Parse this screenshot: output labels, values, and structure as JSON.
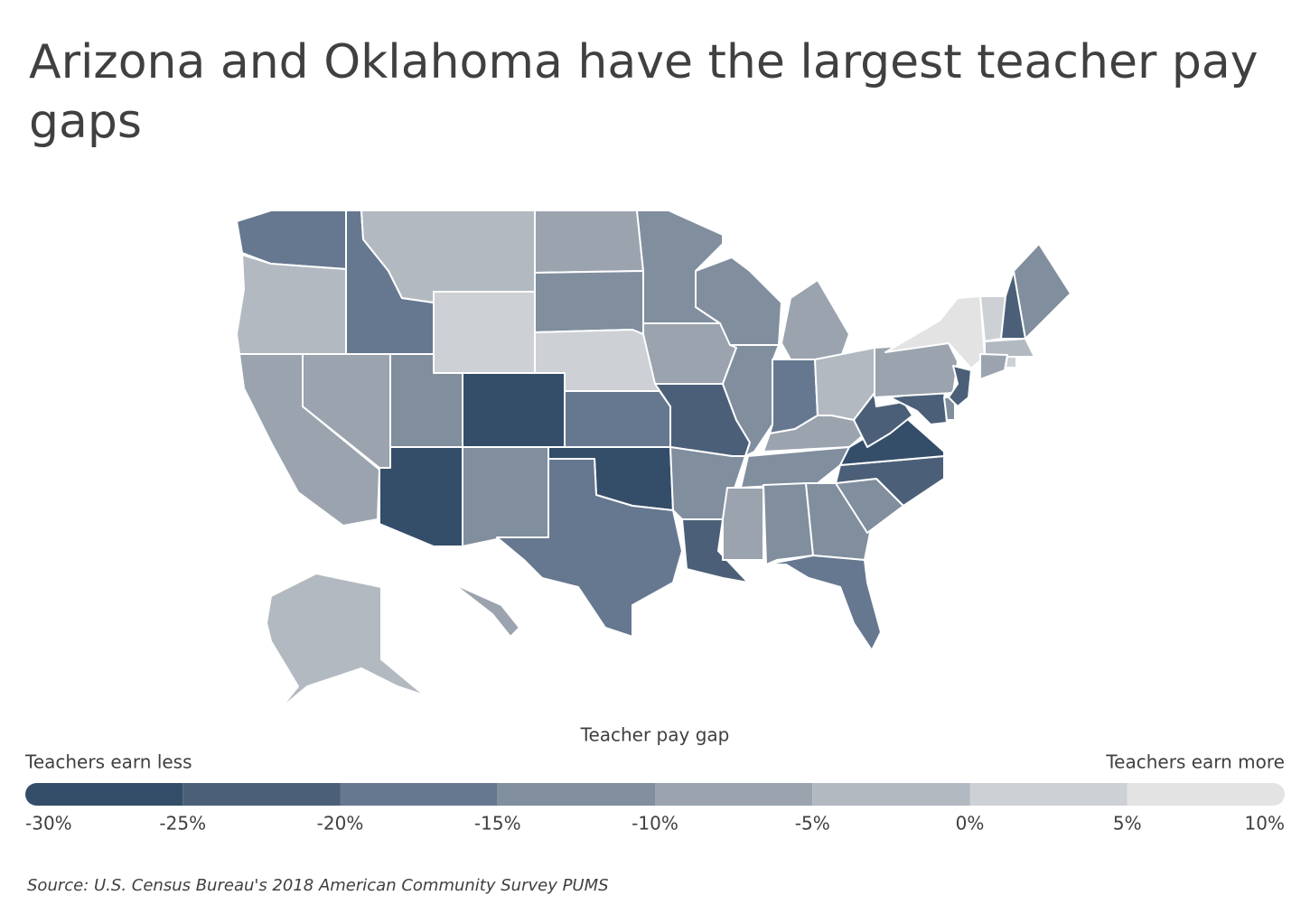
{
  "chart_data": {
    "type": "choropleth",
    "title": "Arizona and Oklahoma have the largest teacher pay gaps",
    "legend_title": "Teacher pay gap",
    "low_label": "Teachers earn less",
    "high_label": "Teachers earn more",
    "source": "Source: U.S. Census Bureau's 2018 American Community Survey PUMS",
    "scale": {
      "lim": [
        -30,
        10
      ],
      "ticks": [
        {
          "value": -30,
          "label": "-30%"
        },
        {
          "value": -25,
          "label": "-25%"
        },
        {
          "value": -20,
          "label": "-20%"
        },
        {
          "value": -15,
          "label": "-15%"
        },
        {
          "value": -10,
          "label": "-10%"
        },
        {
          "value": -5,
          "label": "-5%"
        },
        {
          "value": 0,
          "label": "0%"
        },
        {
          "value": 5,
          "label": "5%"
        },
        {
          "value": 10,
          "label": "10%"
        }
      ],
      "colors": [
        "#344d69",
        "#4b6078",
        "#667890",
        "#808e9e",
        "#9aa3ae",
        "#b3b9c1",
        "#cdd0d5",
        "#e3e3e3"
      ]
    },
    "values": [
      -17,
      -2,
      -7,
      -8,
      -18,
      -3,
      2,
      -12,
      -27,
      -28,
      -13,
      -8,
      -13,
      2,
      -17,
      -28,
      -18,
      -12,
      -8,
      -22,
      -12,
      -22,
      -12,
      -13,
      -18,
      -8,
      -3,
      -8,
      -12,
      -8,
      -12,
      -12,
      -18,
      -13,
      -22,
      -27,
      -22,
      -22,
      -13,
      -8,
      -22,
      7,
      2,
      -22,
      -13,
      -3,
      -8,
      2,
      -3,
      -8
    ]
  }
}
